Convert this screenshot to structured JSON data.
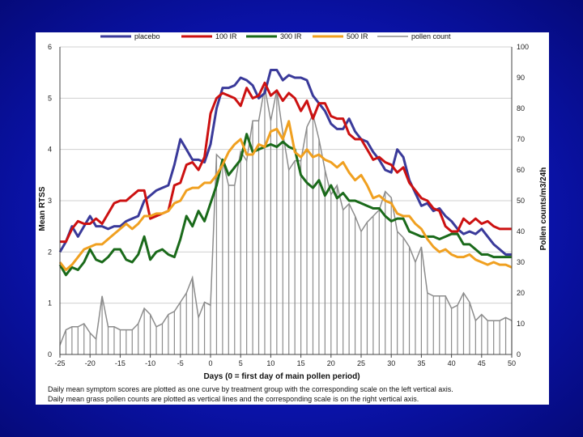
{
  "slide": {
    "caption_1": "Daily mean symptom scores are plotted as one curve by treatment group with the corresponding scale on the left vertical axis.",
    "caption_2": "Daily mean grass pollen counts are plotted as vertical lines and the corresponding scale is on the right vertical axis."
  },
  "chart_data": {
    "type": "line",
    "xlabel": "Days (0 = first day of main pollen period)",
    "ylabel": "Mean RTSS",
    "y2label": "Pollen counts/m3/24h",
    "xlim": [
      -25,
      50
    ],
    "ylim": [
      0,
      6
    ],
    "y2lim": [
      0,
      100
    ],
    "x_ticks": [
      -25,
      -20,
      -15,
      -10,
      -5,
      0,
      5,
      10,
      15,
      20,
      25,
      30,
      35,
      40,
      45,
      50
    ],
    "y_ticks": [
      0,
      1,
      2,
      3,
      4,
      5,
      6
    ],
    "y2_ticks": [
      0,
      10,
      20,
      30,
      40,
      50,
      60,
      70,
      80,
      90,
      100
    ],
    "legend_placement": "top",
    "x": [
      -25,
      -24,
      -23,
      -22,
      -21,
      -20,
      -19,
      -18,
      -17,
      -16,
      -15,
      -14,
      -13,
      -12,
      -11,
      -10,
      -9,
      -8,
      -7,
      -6,
      -5,
      -4,
      -3,
      -2,
      -1,
      0,
      1,
      2,
      3,
      4,
      5,
      6,
      7,
      8,
      9,
      10,
      11,
      12,
      13,
      14,
      15,
      16,
      17,
      18,
      19,
      20,
      21,
      22,
      23,
      24,
      25,
      26,
      27,
      28,
      29,
      30,
      31,
      32,
      33,
      34,
      35,
      36,
      37,
      38,
      39,
      40,
      41,
      42,
      43,
      44,
      45,
      46,
      47,
      48,
      49,
      50
    ],
    "series": [
      {
        "name": "placebo",
        "color": "#3a3a9a",
        "values": [
          2.0,
          2.2,
          2.5,
          2.3,
          2.5,
          2.7,
          2.5,
          2.5,
          2.45,
          2.5,
          2.5,
          2.6,
          2.65,
          2.7,
          3.0,
          3.1,
          3.2,
          3.25,
          3.3,
          3.7,
          4.2,
          4.0,
          3.8,
          3.8,
          3.75,
          4.1,
          4.8,
          5.2,
          5.2,
          5.25,
          5.4,
          5.35,
          5.25,
          5.0,
          5.1,
          5.55,
          5.55,
          5.35,
          5.45,
          5.4,
          5.4,
          5.35,
          5.05,
          4.9,
          4.75,
          4.5,
          4.4,
          4.4,
          4.6,
          4.35,
          4.2,
          4.15,
          3.95,
          3.8,
          3.6,
          3.55,
          4.0,
          3.85,
          3.4,
          3.15,
          2.9,
          2.95,
          2.8,
          2.85,
          2.7,
          2.6,
          2.45,
          2.35,
          2.4,
          2.35,
          2.45,
          2.3,
          2.15,
          2.05,
          1.95,
          1.95
        ]
      },
      {
        "name": "100 IR",
        "color": "#cc1111",
        "values": [
          2.2,
          2.2,
          2.45,
          2.6,
          2.55,
          2.55,
          2.65,
          2.55,
          2.75,
          2.95,
          3.0,
          3.0,
          3.1,
          3.2,
          3.2,
          2.65,
          2.7,
          2.75,
          2.8,
          3.3,
          3.35,
          3.7,
          3.75,
          3.6,
          3.85,
          4.7,
          5.0,
          5.1,
          5.05,
          5.0,
          4.85,
          5.2,
          5.0,
          5.05,
          5.3,
          5.05,
          5.15,
          4.95,
          5.1,
          5.0,
          4.75,
          4.95,
          4.6,
          4.9,
          4.9,
          4.65,
          4.6,
          4.6,
          4.3,
          4.2,
          4.2,
          4.0,
          3.8,
          3.85,
          3.75,
          3.7,
          3.55,
          3.65,
          3.35,
          3.2,
          3.05,
          3.0,
          2.85,
          2.8,
          2.5,
          2.4,
          2.4,
          2.65,
          2.55,
          2.65,
          2.55,
          2.6,
          2.5,
          2.45,
          2.45,
          2.45
        ]
      },
      {
        "name": "300 IR",
        "color": "#1a6a1a",
        "values": [
          1.75,
          1.55,
          1.7,
          1.65,
          1.8,
          2.05,
          1.85,
          1.8,
          1.9,
          2.05,
          2.05,
          1.85,
          1.8,
          1.95,
          2.3,
          1.85,
          2.0,
          2.05,
          1.95,
          1.9,
          2.25,
          2.7,
          2.5,
          2.8,
          2.6,
          2.95,
          3.3,
          3.8,
          3.5,
          3.65,
          3.8,
          4.3,
          3.95,
          4.0,
          4.05,
          4.1,
          4.05,
          4.15,
          4.05,
          4.0,
          3.5,
          3.35,
          3.25,
          3.4,
          3.1,
          3.3,
          3.05,
          3.15,
          3.0,
          3.0,
          2.95,
          2.9,
          2.85,
          2.85,
          2.7,
          2.6,
          2.65,
          2.65,
          2.4,
          2.35,
          2.3,
          2.3,
          2.3,
          2.25,
          2.3,
          2.35,
          2.35,
          2.15,
          2.15,
          2.05,
          1.95,
          1.95,
          1.9,
          1.9,
          1.9,
          1.9
        ]
      },
      {
        "name": "500 IR",
        "color": "#f0a020",
        "values": [
          1.8,
          1.65,
          1.75,
          1.9,
          2.05,
          2.1,
          2.15,
          2.15,
          2.25,
          2.35,
          2.45,
          2.55,
          2.45,
          2.55,
          2.7,
          2.7,
          2.75,
          2.75,
          2.8,
          2.95,
          3.0,
          3.2,
          3.25,
          3.25,
          3.35,
          3.35,
          3.5,
          3.7,
          3.95,
          4.1,
          4.2,
          3.9,
          3.9,
          4.1,
          4.05,
          4.35,
          4.4,
          4.2,
          4.55,
          3.95,
          3.85,
          4.0,
          3.85,
          3.9,
          3.8,
          3.75,
          3.65,
          3.75,
          3.55,
          3.4,
          3.5,
          3.3,
          3.05,
          3.1,
          3.0,
          2.95,
          2.75,
          2.7,
          2.7,
          2.55,
          2.45,
          2.25,
          2.1,
          2.0,
          2.05,
          1.95,
          1.9,
          1.9,
          1.95,
          1.85,
          1.8,
          1.75,
          1.8,
          1.75,
          1.75,
          1.7
        ]
      },
      {
        "name": "pollen count",
        "color": "#8c8c8c",
        "axis": "right",
        "values": [
          3,
          8,
          9,
          9,
          10,
          7,
          5,
          19,
          9,
          9,
          8,
          8,
          8,
          10,
          15,
          13,
          9,
          10,
          13,
          14,
          17,
          20,
          25,
          12,
          17,
          16,
          65,
          63,
          55,
          55,
          66,
          63,
          76,
          76,
          87,
          76,
          86,
          72,
          60,
          63,
          63,
          74,
          78,
          70,
          60,
          52,
          55,
          47,
          49,
          45,
          40,
          43,
          45,
          47,
          53,
          51,
          40,
          38,
          35,
          30,
          35,
          20,
          19,
          19,
          19,
          15,
          16,
          20,
          17,
          11,
          13,
          11,
          11,
          11,
          12,
          11
        ]
      }
    ]
  }
}
